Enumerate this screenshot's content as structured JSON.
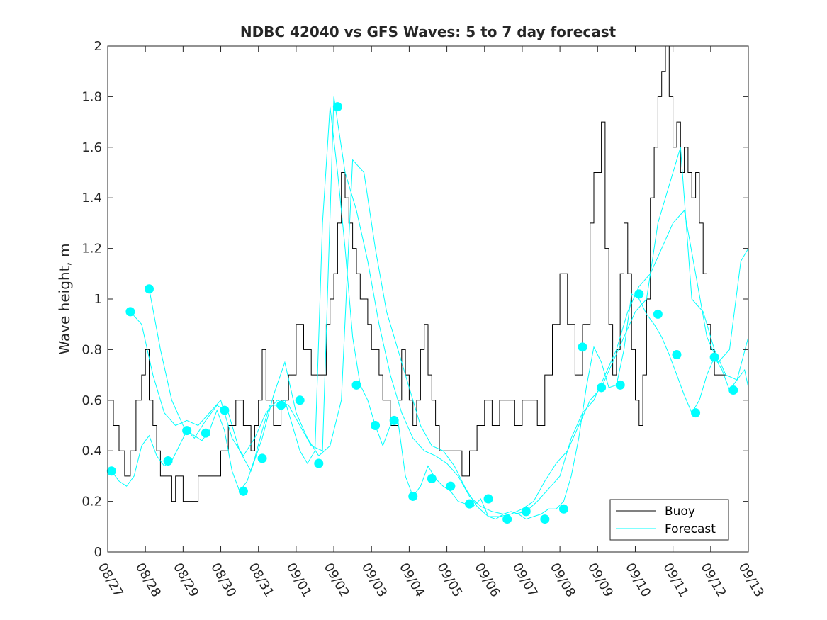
{
  "chart_data": {
    "type": "line",
    "title": "NDBC 42040 vs GFS Waves: 5 to 7 day forecast",
    "ylabel": "Wave height, m",
    "xlabel": "",
    "xlim": [
      0,
      17
    ],
    "ylim": [
      0,
      2
    ],
    "xticks": [
      0,
      1,
      2,
      3,
      4,
      5,
      6,
      7,
      8,
      9,
      10,
      11,
      12,
      13,
      14,
      15,
      16,
      17
    ],
    "xtick_labels": [
      "08/27",
      "08/28",
      "08/29",
      "08/30",
      "08/31",
      "09/01",
      "09/02",
      "09/03",
      "09/04",
      "09/05",
      "09/06",
      "09/07",
      "09/08",
      "09/09",
      "09/10",
      "09/11",
      "09/12",
      "09/13"
    ],
    "yticks": [
      0,
      0.2,
      0.4,
      0.6,
      0.8,
      1,
      1.2,
      1.4,
      1.6,
      1.8,
      2
    ],
    "ytick_labels": [
      "0",
      "0.2",
      "0.4",
      "0.6",
      "0.8",
      "1",
      "1.2",
      "1.4",
      "1.6",
      "1.8",
      "2"
    ],
    "legend": {
      "position": "bottom-right",
      "entries": [
        "Buoy",
        "Forecast"
      ]
    },
    "colors": {
      "buoy": "#000000",
      "forecast": "#00ffff",
      "axes": "#262626"
    },
    "series": [
      {
        "name": "Buoy",
        "x": [
          0,
          0.15,
          0.3,
          0.45,
          0.6,
          0.75,
          0.9,
          1.0,
          1.1,
          1.2,
          1.3,
          1.4,
          1.5,
          1.6,
          1.7,
          1.8,
          1.9,
          2.0,
          2.1,
          2.2,
          2.4,
          2.6,
          2.8,
          3.0,
          3.2,
          3.4,
          3.6,
          3.8,
          3.9,
          4.0,
          4.1,
          4.2,
          4.4,
          4.6,
          4.8,
          5.0,
          5.2,
          5.4,
          5.6,
          5.8,
          5.9,
          6.0,
          6.1,
          6.2,
          6.3,
          6.4,
          6.5,
          6.6,
          6.7,
          6.8,
          6.9,
          7.0,
          7.1,
          7.2,
          7.3,
          7.4,
          7.5,
          7.6,
          7.7,
          7.8,
          7.9,
          8.0,
          8.1,
          8.2,
          8.3,
          8.4,
          8.5,
          8.6,
          8.7,
          8.8,
          8.9,
          9.0,
          9.2,
          9.4,
          9.6,
          9.8,
          10.0,
          10.2,
          10.4,
          10.6,
          10.8,
          11.0,
          11.2,
          11.4,
          11.6,
          11.8,
          12.0,
          12.2,
          12.4,
          12.6,
          12.8,
          12.9,
          13.0,
          13.1,
          13.2,
          13.3,
          13.4,
          13.5,
          13.6,
          13.7,
          13.8,
          13.9,
          14.0,
          14.1,
          14.2,
          14.3,
          14.4,
          14.5,
          14.6,
          14.7,
          14.8,
          14.9,
          15.0,
          15.1,
          15.2,
          15.3,
          15.4,
          15.5,
          15.6,
          15.7,
          15.8,
          15.9,
          16.0,
          16.1,
          16.2,
          16.4
        ],
        "y": [
          0.6,
          0.5,
          0.4,
          0.3,
          0.4,
          0.6,
          0.7,
          0.8,
          0.6,
          0.5,
          0.4,
          0.3,
          0.3,
          0.3,
          0.2,
          0.3,
          0.3,
          0.2,
          0.2,
          0.2,
          0.3,
          0.3,
          0.3,
          0.4,
          0.5,
          0.6,
          0.5,
          0.4,
          0.5,
          0.6,
          0.8,
          0.6,
          0.5,
          0.6,
          0.7,
          0.9,
          0.8,
          0.7,
          0.7,
          0.9,
          1.0,
          1.1,
          1.3,
          1.5,
          1.4,
          1.3,
          1.2,
          1.1,
          1.0,
          1.0,
          0.9,
          0.8,
          0.8,
          0.7,
          0.6,
          0.6,
          0.5,
          0.5,
          0.6,
          0.8,
          0.7,
          0.6,
          0.5,
          0.6,
          0.8,
          0.9,
          0.7,
          0.6,
          0.5,
          0.4,
          0.4,
          0.4,
          0.4,
          0.3,
          0.4,
          0.5,
          0.6,
          0.5,
          0.6,
          0.6,
          0.5,
          0.6,
          0.6,
          0.5,
          0.7,
          0.9,
          1.1,
          0.9,
          0.7,
          0.9,
          1.3,
          1.5,
          1.5,
          1.7,
          1.2,
          0.9,
          0.7,
          0.8,
          1.1,
          1.3,
          1.1,
          0.8,
          0.6,
          0.5,
          0.7,
          1.0,
          1.4,
          1.6,
          1.8,
          1.9,
          2.0,
          1.8,
          1.6,
          1.7,
          1.5,
          1.6,
          1.5,
          1.4,
          1.5,
          1.3,
          1.1,
          0.9,
          0.8,
          0.7,
          0.7,
          0.7
        ]
      },
      {
        "name": "Forecast",
        "segments": [
          {
            "x": [
              0.1,
              0.3,
              0.5,
              0.7,
              0.9,
              1.1,
              1.3,
              1.5,
              1.7,
              1.9,
              2.1,
              2.3,
              2.5,
              2.7,
              2.9,
              3.1,
              3.3,
              3.5,
              3.7,
              3.9,
              4.1,
              4.3,
              4.5,
              4.7,
              4.9,
              5.1,
              5.3,
              5.5,
              5.7,
              5.9,
              6.1,
              6.3,
              6.5,
              6.7,
              6.9,
              7.1,
              7.3,
              7.5,
              7.7,
              7.9,
              8.1,
              8.3,
              8.5,
              8.7,
              8.9,
              9.1,
              9.3,
              9.5,
              9.7,
              9.9,
              10.1,
              10.3,
              10.5,
              10.7,
              10.9,
              11.1,
              11.3,
              11.5,
              11.7,
              11.9,
              12.1,
              12.3,
              12.5,
              12.7,
              12.9,
              13.1,
              13.3,
              13.5,
              13.7,
              13.9,
              14.1,
              14.3,
              14.5,
              14.7,
              14.9,
              15.1,
              15.3,
              15.5,
              15.7,
              15.9,
              16.1,
              16.3,
              16.5,
              16.7,
              16.9,
              17.0
            ],
            "y": [
              0.32,
              0.28,
              0.26,
              0.3,
              0.42,
              0.46,
              0.38,
              0.34,
              0.36,
              0.42,
              0.48,
              0.46,
              0.44,
              0.48,
              0.56,
              0.48,
              0.32,
              0.24,
              0.28,
              0.37,
              0.48,
              0.58,
              0.58,
              0.6,
              0.5,
              0.4,
              0.35,
              0.4,
              1.3,
              1.76,
              1.5,
              1.2,
              0.85,
              0.66,
              0.6,
              0.5,
              0.42,
              0.5,
              0.52,
              0.3,
              0.22,
              0.26,
              0.34,
              0.29,
              0.26,
              0.24,
              0.2,
              0.19,
              0.18,
              0.21,
              0.14,
              0.13,
              0.15,
              0.16,
              0.15,
              0.13,
              0.14,
              0.15,
              0.17,
              0.17,
              0.2,
              0.3,
              0.45,
              0.65,
              0.81,
              0.75,
              0.65,
              0.66,
              0.8,
              1.02,
              1.0,
              0.94,
              0.9,
              0.85,
              0.78,
              0.7,
              0.62,
              0.55,
              0.6,
              0.7,
              0.77,
              0.72,
              0.64,
              0.68,
              0.72,
              0.65
            ]
          },
          {
            "x": [
              0.6,
              0.9,
              1.2,
              1.5,
              1.8,
              2.1,
              2.4,
              2.7,
              3.0,
              3.3,
              3.6,
              3.9,
              4.2,
              4.5,
              4.8,
              5.1,
              5.4,
              5.7,
              6.0,
              6.3,
              6.6,
              6.9,
              7.2,
              7.5,
              7.8,
              8.1,
              8.4,
              8.7,
              9.0,
              9.3,
              9.6,
              9.9,
              10.2,
              10.5,
              10.8,
              11.1,
              11.4,
              11.7,
              12.0,
              12.3,
              12.6,
              12.9,
              13.2,
              13.5,
              13.8,
              14.1,
              14.4,
              14.7,
              15.0,
              15.3,
              15.6,
              15.9,
              16.2,
              16.5,
              16.8,
              17.0
            ],
            "y": [
              0.95,
              0.9,
              0.7,
              0.55,
              0.5,
              0.52,
              0.5,
              0.55,
              0.6,
              0.45,
              0.38,
              0.45,
              0.55,
              0.6,
              0.58,
              0.5,
              0.42,
              0.4,
              1.8,
              1.5,
              1.35,
              1.15,
              0.9,
              0.7,
              0.55,
              0.45,
              0.4,
              0.38,
              0.35,
              0.3,
              0.22,
              0.18,
              0.16,
              0.15,
              0.15,
              0.16,
              0.2,
              0.25,
              0.3,
              0.45,
              0.55,
              0.6,
              0.7,
              0.8,
              0.95,
              1.05,
              1.1,
              1.2,
              1.3,
              1.35,
              1.1,
              0.85,
              0.75,
              0.8,
              1.15,
              1.2
            ]
          },
          {
            "x": [
              1.1,
              1.4,
              1.7,
              2.0,
              2.3,
              2.6,
              2.9,
              3.2,
              3.5,
              3.8,
              4.1,
              4.4,
              4.7,
              5.0,
              5.3,
              5.6,
              5.9,
              6.2,
              6.5,
              6.8,
              7.1,
              7.4,
              7.7,
              8.0,
              8.3,
              8.6,
              8.9,
              9.2,
              9.5,
              9.8,
              10.1,
              10.4,
              10.7,
              11.0,
              11.3,
              11.6,
              11.9,
              12.2,
              12.5,
              12.8,
              13.1,
              13.4,
              13.7,
              14.0,
              14.3,
              14.6,
              14.9,
              15.2,
              15.5,
              15.8,
              16.1,
              16.4,
              16.7,
              17.0
            ],
            "y": [
              1.04,
              0.8,
              0.6,
              0.5,
              0.45,
              0.52,
              0.58,
              0.55,
              0.4,
              0.32,
              0.45,
              0.62,
              0.75,
              0.55,
              0.45,
              0.38,
              0.42,
              0.6,
              1.55,
              1.5,
              1.2,
              0.95,
              0.8,
              0.65,
              0.5,
              0.42,
              0.4,
              0.34,
              0.25,
              0.18,
              0.14,
              0.14,
              0.15,
              0.17,
              0.2,
              0.28,
              0.35,
              0.4,
              0.5,
              0.6,
              0.65,
              0.75,
              0.85,
              0.95,
              1.0,
              1.3,
              1.45,
              1.6,
              1.0,
              0.95,
              0.8,
              0.7,
              0.68,
              0.85
            ]
          }
        ],
        "markers": {
          "x": [
            0.1,
            0.6,
            1.1,
            1.6,
            2.1,
            2.6,
            3.1,
            3.6,
            4.1,
            4.6,
            5.1,
            5.6,
            6.1,
            6.6,
            7.1,
            7.6,
            8.1,
            8.6,
            9.1,
            9.6,
            10.1,
            10.6,
            11.1,
            11.6,
            12.1,
            12.6,
            13.1,
            13.6,
            14.1,
            14.6,
            15.1,
            15.6,
            16.1,
            16.6
          ],
          "y": [
            0.32,
            0.95,
            1.04,
            0.36,
            0.48,
            0.47,
            0.56,
            0.24,
            0.37,
            0.58,
            0.6,
            0.35,
            1.76,
            0.66,
            0.5,
            0.52,
            0.22,
            0.29,
            0.26,
            0.19,
            0.21,
            0.13,
            0.16,
            0.13,
            0.17,
            0.81,
            0.65,
            0.66,
            1.02,
            0.94,
            0.78,
            0.55,
            0.77,
            0.64
          ]
        }
      }
    ]
  }
}
